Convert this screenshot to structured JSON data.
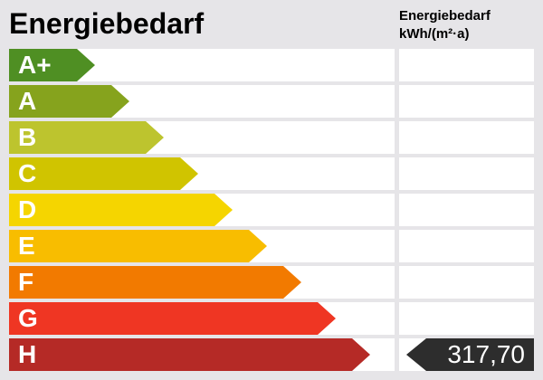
{
  "title": "Energiebedarf",
  "column_header": {
    "line1": "Energiebedarf",
    "line2": "kWh/(m²·a)"
  },
  "classes": [
    {
      "label": "A+",
      "color": "#4f8f23"
    },
    {
      "label": "A",
      "color": "#86a31d"
    },
    {
      "label": "B",
      "color": "#bdc42e"
    },
    {
      "label": "C",
      "color": "#d0c400"
    },
    {
      "label": "D",
      "color": "#f5d500"
    },
    {
      "label": "E",
      "color": "#f8bd00"
    },
    {
      "label": "F",
      "color": "#f27a00"
    },
    {
      "label": "G",
      "color": "#ef3623"
    },
    {
      "label": "H",
      "color": "#b52a26"
    }
  ],
  "current_class": "H",
  "current_value": "317,70",
  "marker_color": "#2d2d2d"
}
